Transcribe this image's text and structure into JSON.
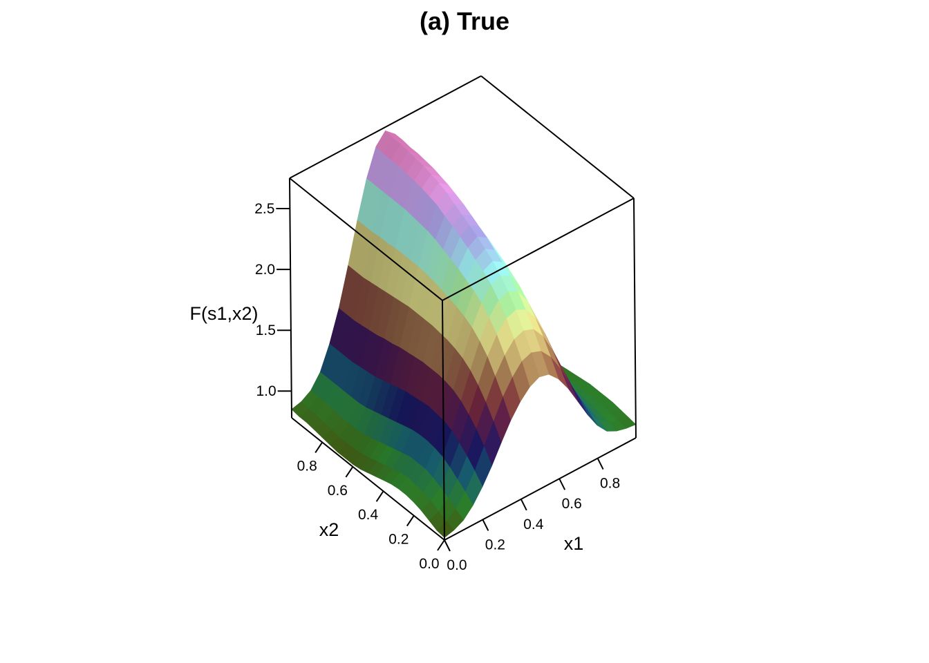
{
  "chart_data": {
    "type": "surface",
    "title": "(a) True",
    "xlabel": "x1",
    "ylabel": "x2",
    "zlabel": "F(s1,x2)",
    "xlim": [
      0,
      1
    ],
    "ylim": [
      0,
      1
    ],
    "zlim": [
      0.78,
      2.75
    ],
    "x_ticks": [
      {
        "value": 0.0,
        "label": "0.0"
      },
      {
        "value": 0.2,
        "label": "0.2"
      },
      {
        "value": 0.4,
        "label": "0.4"
      },
      {
        "value": 0.6,
        "label": "0.6"
      },
      {
        "value": 0.8,
        "label": "0.8"
      }
    ],
    "y_ticks": [
      {
        "value": 0.0,
        "label": "0.0"
      },
      {
        "value": 0.2,
        "label": "0.2"
      },
      {
        "value": 0.4,
        "label": "0.4"
      },
      {
        "value": 0.6,
        "label": "0.6"
      },
      {
        "value": 0.8,
        "label": "0.8"
      }
    ],
    "z_ticks": [
      {
        "value": 1.0,
        "label": "1.0"
      },
      {
        "value": 1.5,
        "label": "1.5"
      },
      {
        "value": 2.0,
        "label": "2.0"
      },
      {
        "value": 2.5,
        "label": "2.5"
      }
    ],
    "grid_x": [
      0,
      0.05,
      0.1,
      0.15,
      0.2,
      0.25,
      0.3,
      0.35,
      0.4,
      0.45,
      0.5,
      0.55,
      0.6,
      0.65,
      0.7,
      0.75,
      0.8,
      0.85,
      0.9,
      0.95,
      1.0
    ],
    "grid_y": [
      0,
      0.05,
      0.1,
      0.15,
      0.2,
      0.25,
      0.3,
      0.35,
      0.4,
      0.45,
      0.5,
      0.55,
      0.6,
      0.65,
      0.7,
      0.75,
      0.8,
      0.85,
      0.9,
      0.95,
      1.0
    ],
    "z": [
      [
        0.8,
        0.82,
        0.86,
        0.94,
        1.05,
        1.18,
        1.33,
        1.47,
        1.58,
        1.66,
        1.7,
        1.68,
        1.6,
        1.48,
        1.33,
        1.18,
        1.05,
        0.96,
        0.92,
        0.9,
        0.89
      ],
      [
        0.81,
        0.84,
        0.9,
        1.0,
        1.13,
        1.29,
        1.45,
        1.61,
        1.73,
        1.82,
        1.85,
        1.82,
        1.73,
        1.59,
        1.42,
        1.25,
        1.1,
        1.0,
        0.94,
        0.91,
        0.9
      ],
      [
        0.84,
        0.87,
        0.94,
        1.05,
        1.2,
        1.38,
        1.56,
        1.73,
        1.86,
        1.95,
        1.98,
        1.95,
        1.85,
        1.69,
        1.5,
        1.31,
        1.14,
        1.02,
        0.95,
        0.92,
        0.91
      ],
      [
        0.87,
        0.91,
        0.98,
        1.1,
        1.26,
        1.45,
        1.65,
        1.84,
        1.98,
        2.07,
        2.1,
        2.06,
        1.95,
        1.78,
        1.57,
        1.36,
        1.18,
        1.04,
        0.96,
        0.93,
        0.92
      ],
      [
        0.89,
        0.93,
        1.01,
        1.14,
        1.31,
        1.51,
        1.72,
        1.92,
        2.07,
        2.17,
        2.2,
        2.16,
        2.04,
        1.85,
        1.63,
        1.4,
        1.2,
        1.06,
        0.97,
        0.93,
        0.92
      ],
      [
        0.9,
        0.94,
        1.03,
        1.16,
        1.34,
        1.55,
        1.77,
        1.98,
        2.14,
        2.25,
        2.28,
        2.24,
        2.11,
        1.91,
        1.68,
        1.44,
        1.22,
        1.07,
        0.98,
        0.93,
        0.92
      ],
      [
        0.9,
        0.95,
        1.03,
        1.17,
        1.35,
        1.57,
        1.8,
        2.02,
        2.19,
        2.31,
        2.35,
        2.3,
        2.16,
        1.95,
        1.71,
        1.46,
        1.24,
        1.08,
        0.98,
        0.93,
        0.92
      ],
      [
        0.89,
        0.94,
        1.03,
        1.17,
        1.36,
        1.58,
        1.82,
        2.05,
        2.23,
        2.35,
        2.4,
        2.35,
        2.21,
        1.99,
        1.73,
        1.47,
        1.25,
        1.08,
        0.98,
        0.93,
        0.91
      ],
      [
        0.87,
        0.92,
        1.01,
        1.16,
        1.35,
        1.58,
        1.83,
        2.07,
        2.27,
        2.4,
        2.45,
        2.4,
        2.25,
        2.02,
        1.76,
        1.49,
        1.25,
        1.08,
        0.97,
        0.92,
        0.9
      ],
      [
        0.85,
        0.9,
        0.99,
        1.14,
        1.34,
        1.58,
        1.84,
        2.09,
        2.3,
        2.44,
        2.49,
        2.44,
        2.29,
        2.05,
        1.78,
        1.5,
        1.26,
        1.08,
        0.97,
        0.91,
        0.89
      ],
      [
        0.83,
        0.88,
        0.97,
        1.12,
        1.33,
        1.57,
        1.84,
        2.11,
        2.33,
        2.48,
        2.53,
        2.48,
        2.32,
        2.08,
        1.79,
        1.51,
        1.26,
        1.08,
        0.96,
        0.9,
        0.88
      ],
      [
        0.81,
        0.86,
        0.95,
        1.1,
        1.31,
        1.56,
        1.84,
        2.12,
        2.36,
        2.51,
        2.57,
        2.52,
        2.35,
        2.1,
        1.81,
        1.52,
        1.26,
        1.07,
        0.95,
        0.89,
        0.87
      ],
      [
        0.8,
        0.84,
        0.93,
        1.08,
        1.29,
        1.55,
        1.84,
        2.13,
        2.38,
        2.55,
        2.61,
        2.55,
        2.38,
        2.12,
        1.82,
        1.52,
        1.26,
        1.07,
        0.95,
        0.88,
        0.86
      ],
      [
        0.8,
        0.83,
        0.91,
        1.06,
        1.27,
        1.53,
        1.83,
        2.13,
        2.39,
        2.57,
        2.64,
        2.58,
        2.4,
        2.13,
        1.82,
        1.52,
        1.25,
        1.06,
        0.94,
        0.88,
        0.86
      ],
      [
        0.8,
        0.83,
        0.9,
        1.04,
        1.25,
        1.52,
        1.82,
        2.13,
        2.4,
        2.59,
        2.66,
        2.6,
        2.41,
        2.14,
        1.83,
        1.52,
        1.25,
        1.05,
        0.93,
        0.87,
        0.85
      ],
      [
        0.81,
        0.83,
        0.9,
        1.03,
        1.24,
        1.5,
        1.81,
        2.13,
        2.41,
        2.6,
        2.68,
        2.62,
        2.43,
        2.14,
        1.83,
        1.51,
        1.24,
        1.04,
        0.92,
        0.87,
        0.85
      ],
      [
        0.82,
        0.84,
        0.9,
        1.03,
        1.23,
        1.49,
        1.8,
        2.12,
        2.41,
        2.61,
        2.69,
        2.63,
        2.43,
        2.15,
        1.82,
        1.51,
        1.23,
        1.04,
        0.92,
        0.87,
        0.86
      ],
      [
        0.83,
        0.85,
        0.91,
        1.03,
        1.22,
        1.48,
        1.79,
        2.12,
        2.41,
        2.62,
        2.7,
        2.64,
        2.44,
        2.15,
        1.82,
        1.5,
        1.23,
        1.03,
        0.92,
        0.87,
        0.86
      ],
      [
        0.84,
        0.86,
        0.92,
        1.03,
        1.22,
        1.47,
        1.78,
        2.11,
        2.41,
        2.62,
        2.71,
        2.64,
        2.44,
        2.15,
        1.82,
        1.5,
        1.22,
        1.03,
        0.92,
        0.88,
        0.87
      ],
      [
        0.84,
        0.86,
        0.92,
        1.03,
        1.22,
        1.47,
        1.78,
        2.11,
        2.41,
        2.62,
        2.71,
        2.65,
        2.44,
        2.15,
        1.82,
        1.49,
        1.22,
        1.03,
        0.93,
        0.88,
        0.87
      ],
      [
        0.85,
        0.87,
        0.92,
        1.03,
        1.22,
        1.47,
        1.78,
        2.11,
        2.41,
        2.63,
        2.72,
        2.65,
        2.45,
        2.15,
        1.82,
        1.49,
        1.22,
        1.03,
        0.93,
        0.89,
        0.88
      ]
    ],
    "colors": {
      "axis": "#000000",
      "palette": [
        "#4a5a10",
        "#2f8a2f",
        "#1a6a7a",
        "#1a1a6a",
        "#4a1a5a",
        "#7a2a3a",
        "#9a6a4a",
        "#c8b070",
        "#e8e890",
        "#a8f0a0",
        "#a0f8f8",
        "#b0a8f0",
        "#f0a0f0",
        "#d06090"
      ]
    },
    "grid": false,
    "legend": "none"
  }
}
